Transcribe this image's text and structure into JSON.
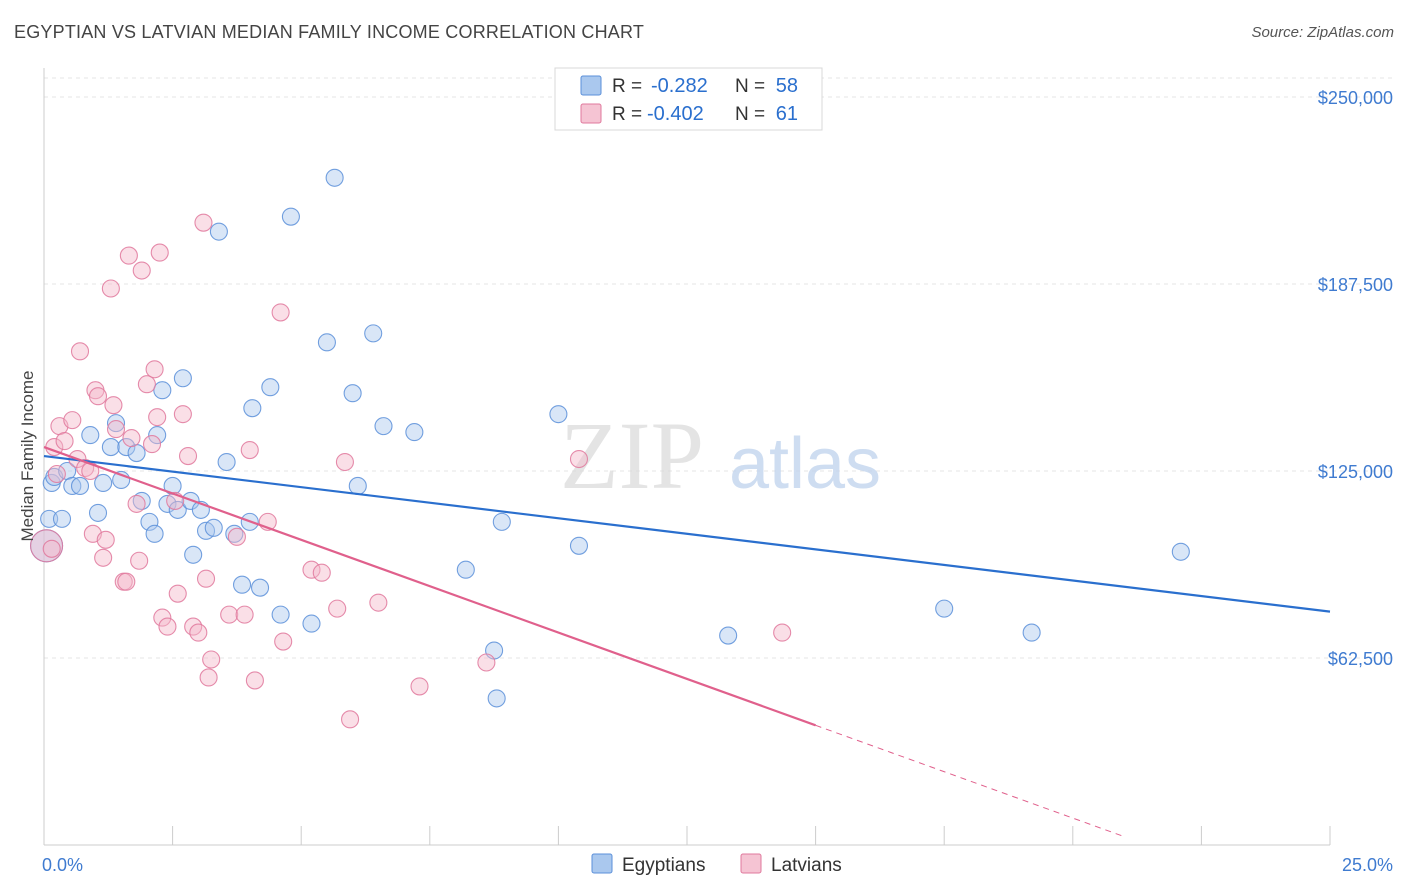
{
  "chart_data": {
    "type": "scatter",
    "title": "EGYPTIAN VS LATVIAN MEDIAN FAMILY INCOME CORRELATION CHART",
    "source": "Source: ZipAtlas.com",
    "xlabel": "",
    "ylabel": "Median Family Income",
    "xlim": [
      0,
      25
    ],
    "ylim": [
      0,
      262500
    ],
    "x_tick_labels": [
      "0.0%",
      "25.0%"
    ],
    "y_ticks": [
      {
        "value": 62500,
        "label": "$62,500"
      },
      {
        "value": 125000,
        "label": "$125,000"
      },
      {
        "value": 187500,
        "label": "$187,500"
      },
      {
        "value": 250000,
        "label": "$250,000"
      }
    ],
    "watermark": {
      "zip": "ZIP",
      "atlas": "atlas"
    },
    "legend": [
      {
        "r_label": "R =",
        "r_value": "-0.282",
        "n_label": "N =",
        "n_value": "58"
      },
      {
        "r_label": "R =",
        "r_value": "-0.402",
        "n_label": "N =",
        "n_value": "61"
      }
    ],
    "series": [
      {
        "name": "Egyptians",
        "color": "#5b8fd9",
        "fill": "#aac8ee",
        "trend": {
          "x0": 0,
          "y0": 130000,
          "x1": 25,
          "y1": 78000
        },
        "points": [
          [
            0.05,
            100000
          ],
          [
            0.1,
            109000
          ],
          [
            0.15,
            121000
          ],
          [
            0.2,
            123000
          ],
          [
            0.35,
            109000
          ],
          [
            0.45,
            125000
          ],
          [
            0.55,
            120000
          ],
          [
            0.7,
            120000
          ],
          [
            0.9,
            137000
          ],
          [
            1.05,
            111000
          ],
          [
            1.15,
            121000
          ],
          [
            1.3,
            133000
          ],
          [
            1.4,
            141000
          ],
          [
            1.5,
            122000
          ],
          [
            1.6,
            133000
          ],
          [
            1.8,
            131000
          ],
          [
            1.9,
            115000
          ],
          [
            2.05,
            108000
          ],
          [
            2.15,
            104000
          ],
          [
            2.2,
            137000
          ],
          [
            2.3,
            152000
          ],
          [
            2.4,
            114000
          ],
          [
            2.5,
            120000
          ],
          [
            2.6,
            112000
          ],
          [
            2.7,
            156000
          ],
          [
            2.85,
            115000
          ],
          [
            2.9,
            97000
          ],
          [
            3.05,
            112000
          ],
          [
            3.15,
            105000
          ],
          [
            3.3,
            106000
          ],
          [
            3.4,
            205000
          ],
          [
            3.55,
            128000
          ],
          [
            3.7,
            104000
          ],
          [
            3.85,
            87000
          ],
          [
            4.0,
            108000
          ],
          [
            4.05,
            146000
          ],
          [
            4.2,
            86000
          ],
          [
            4.4,
            153000
          ],
          [
            4.6,
            77000
          ],
          [
            4.8,
            210000
          ],
          [
            5.2,
            74000
          ],
          [
            5.5,
            168000
          ],
          [
            5.65,
            223000
          ],
          [
            6.0,
            151000
          ],
          [
            6.1,
            120000
          ],
          [
            6.4,
            171000
          ],
          [
            6.6,
            140000
          ],
          [
            7.2,
            138000
          ],
          [
            8.2,
            92000
          ],
          [
            8.75,
            65000
          ],
          [
            8.8,
            49000
          ],
          [
            8.9,
            108000
          ],
          [
            10.0,
            144000
          ],
          [
            10.4,
            100000
          ],
          [
            13.3,
            70000
          ],
          [
            17.5,
            79000
          ],
          [
            19.2,
            71000
          ],
          [
            22.1,
            98000
          ]
        ]
      },
      {
        "name": "Latvians",
        "color": "#e0789c",
        "fill": "#f5b8ca",
        "trend": {
          "x0": 0,
          "y0": 133000,
          "x1": 15,
          "y1": 40000
        },
        "trend_dashed": {
          "x0": 15,
          "y0": 40000,
          "x1": 21,
          "y1": 2800
        },
        "points": [
          [
            0.05,
            100000
          ],
          [
            0.2,
            133000
          ],
          [
            0.25,
            124000
          ],
          [
            0.3,
            140000
          ],
          [
            0.4,
            135000
          ],
          [
            0.55,
            142000
          ],
          [
            0.65,
            129000
          ],
          [
            0.7,
            165000
          ],
          [
            0.8,
            126000
          ],
          [
            0.9,
            125000
          ],
          [
            0.95,
            104000
          ],
          [
            1.0,
            152000
          ],
          [
            1.05,
            150000
          ],
          [
            1.15,
            96000
          ],
          [
            1.2,
            102000
          ],
          [
            1.3,
            186000
          ],
          [
            1.35,
            147000
          ],
          [
            1.4,
            139000
          ],
          [
            1.55,
            88000
          ],
          [
            1.6,
            88000
          ],
          [
            1.65,
            197000
          ],
          [
            1.7,
            136000
          ],
          [
            1.8,
            114000
          ],
          [
            1.85,
            95000
          ],
          [
            1.9,
            192000
          ],
          [
            2.0,
            154000
          ],
          [
            2.1,
            134000
          ],
          [
            2.15,
            159000
          ],
          [
            2.2,
            143000
          ],
          [
            2.25,
            198000
          ],
          [
            2.3,
            76000
          ],
          [
            2.4,
            73000
          ],
          [
            2.55,
            115000
          ],
          [
            2.6,
            84000
          ],
          [
            2.7,
            144000
          ],
          [
            2.8,
            130000
          ],
          [
            2.9,
            73000
          ],
          [
            3.0,
            71000
          ],
          [
            3.1,
            208000
          ],
          [
            3.15,
            89000
          ],
          [
            3.2,
            56000
          ],
          [
            3.25,
            62000
          ],
          [
            3.6,
            77000
          ],
          [
            3.75,
            103000
          ],
          [
            3.9,
            77000
          ],
          [
            4.0,
            132000
          ],
          [
            4.1,
            55000
          ],
          [
            4.35,
            108000
          ],
          [
            4.6,
            178000
          ],
          [
            4.65,
            68000
          ],
          [
            5.2,
            92000
          ],
          [
            5.4,
            91000
          ],
          [
            5.7,
            79000
          ],
          [
            5.85,
            128000
          ],
          [
            5.95,
            42000
          ],
          [
            6.5,
            81000
          ],
          [
            7.3,
            53000
          ],
          [
            8.6,
            61000
          ],
          [
            10.4,
            129000
          ],
          [
            14.35,
            71000
          ],
          [
            0.15,
            99000
          ]
        ]
      }
    ]
  }
}
